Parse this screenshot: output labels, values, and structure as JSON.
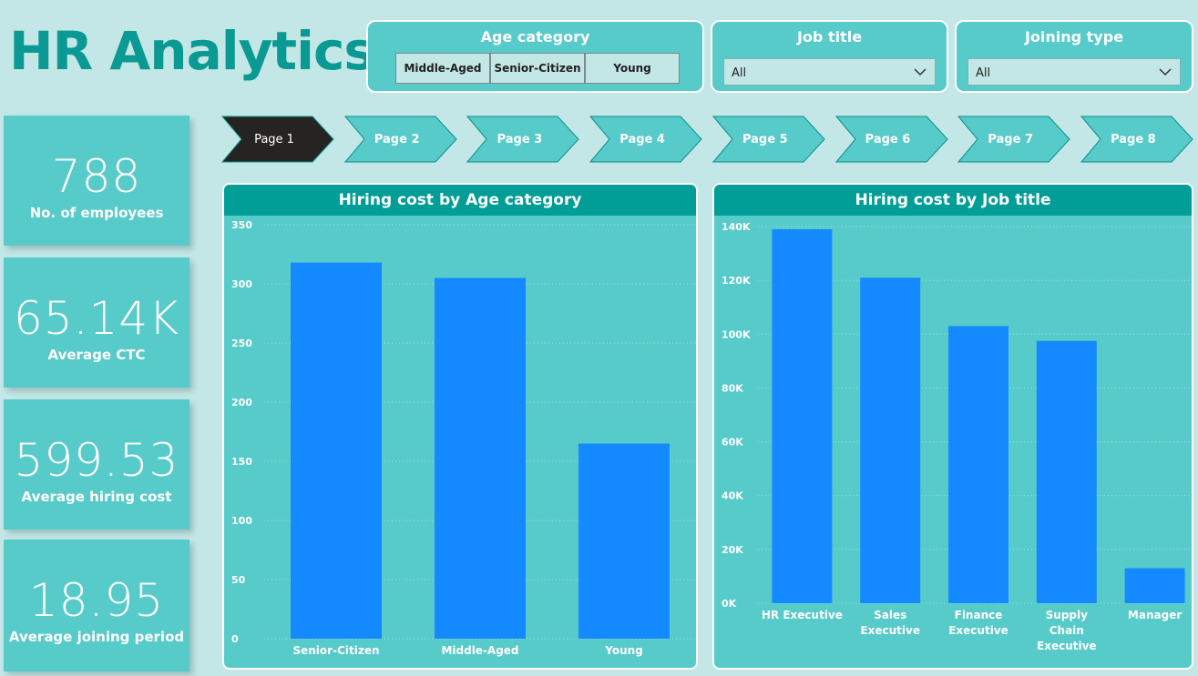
{
  "title": "HR Analytics",
  "slicers": {
    "age": {
      "label": "Age category",
      "options": [
        "Middle-Aged",
        "Senior-Citizen",
        "Young"
      ]
    },
    "job": {
      "label": "Job title",
      "value": "All"
    },
    "joining": {
      "label": "Joining type",
      "value": "All"
    }
  },
  "kpis": [
    {
      "value": "788",
      "label": "No. of employees"
    },
    {
      "value": "65.14K",
      "label": "Average CTC"
    },
    {
      "value": "599.53",
      "label": "Average hiring cost"
    },
    {
      "value": "18.95",
      "label": "Average joining period"
    }
  ],
  "pages": [
    "Page 1",
    "Page 2",
    "Page 3",
    "Page 4",
    "Page 5",
    "Page 6",
    "Page 7",
    "Page 8"
  ],
  "active_page": 0,
  "colors": {
    "bar": "#1589ff",
    "header": "#009e96",
    "panel": "#57cbc9",
    "title": "#0b9a93",
    "nav_active": "#252423",
    "nav": "#57cbc9"
  },
  "chart_data": [
    {
      "type": "bar",
      "title": "Hiring cost by Age category",
      "categories": [
        "Senior-Citizen",
        "Middle-Aged",
        "Young"
      ],
      "values": [
        318,
        305,
        165
      ],
      "yticks": [
        "0",
        "50",
        "100",
        "150",
        "200",
        "250",
        "300",
        "350"
      ],
      "ylim": [
        0,
        350
      ],
      "grid": true
    },
    {
      "type": "bar",
      "title": "Hiring cost by Job title",
      "categories": [
        "HR Executive",
        "Sales Executive",
        "Finance Executive",
        "Supply Chain Executive",
        "Manager"
      ],
      "values": [
        139000,
        121000,
        103000,
        97500,
        13000
      ],
      "yticks": [
        "0K",
        "20K",
        "40K",
        "60K",
        "80K",
        "100K",
        "120K",
        "140K"
      ],
      "ylim": [
        0,
        140000
      ],
      "grid": true
    }
  ]
}
